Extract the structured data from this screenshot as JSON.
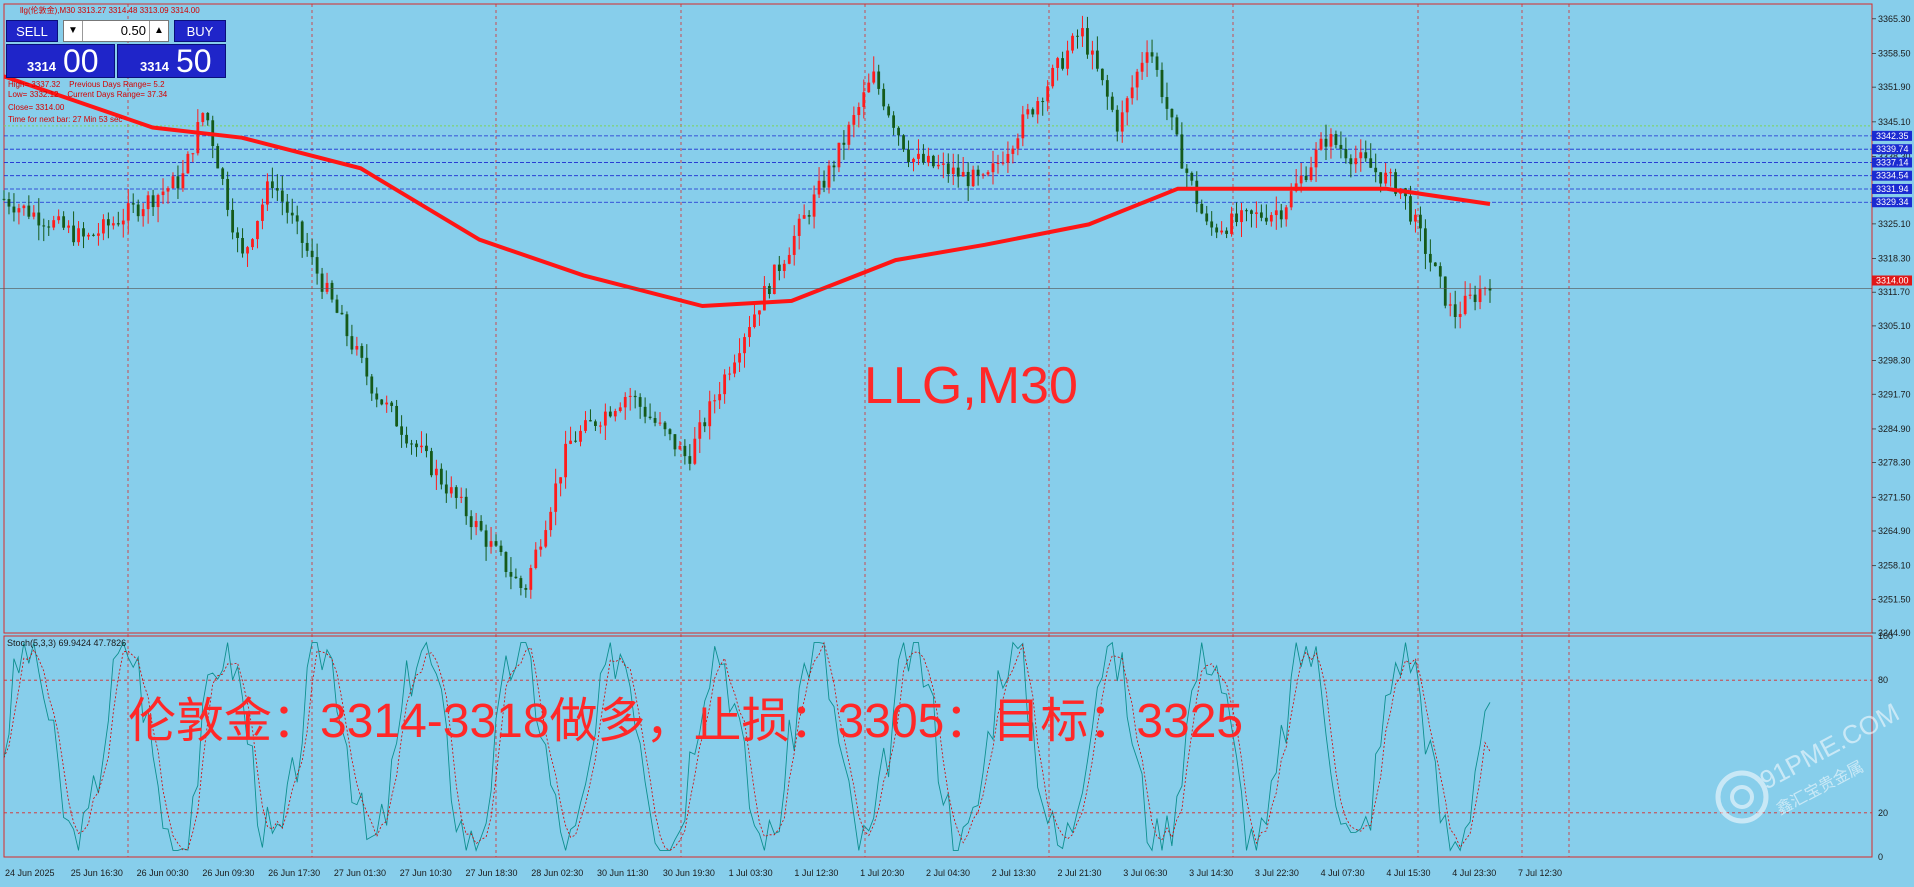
{
  "window": {
    "title_line": "llg(伦敦金),M30  3313.27 3314.48 3313.09 3314.00",
    "symbol_label": "LLG,M30",
    "annotation": "伦敦金：3314-3318做多，止损：3305：目标：3325",
    "watermark": "91PME.COM 鑫汇宝贵金属"
  },
  "trade_panel": {
    "sell_label": "SELL",
    "buy_label": "BUY",
    "lot_value": "0.50",
    "sell_small": "3314",
    "sell_big": "00",
    "buy_small": "3314",
    "buy_big": "50",
    "down_arrow": "▼",
    "up_arrow": "▲"
  },
  "info_lines": [
    "High= 3337.32    Previous Days Range= 5.2",
    "Low= 3332.12    Current Days Range= 37.34",
    "Close= 3314.00",
    "Time for next bar: 27 Min 53 sec"
  ],
  "colors": {
    "background": "#87CEEB",
    "grid": "#d92a2a",
    "bull": "#ff1c1c",
    "bear": "#155a1a",
    "ma": "#ff1515",
    "stoch_main": "#0e8f8f",
    "stoch_signal": "#d40000"
  },
  "chart_data": {
    "type": "candlestick",
    "title": "LLG,M30",
    "price_axis": {
      "min": 3244.9,
      "max": 3368.2,
      "ticks": [
        "3365.30",
        "3358.50",
        "3351.90",
        "3345.10",
        "3338.30",
        "3331.70",
        "3325.10",
        "3318.30",
        "3311.70",
        "3305.10",
        "3298.30",
        "3291.70",
        "3284.90",
        "3278.30",
        "3271.50",
        "3264.90",
        "3258.10",
        "3251.50",
        "3244.90"
      ]
    },
    "price_labels_boxes": [
      "3342.35",
      "3339.74",
      "3337.14",
      "3334.54",
      "3331.94",
      "3329.34",
      "3314.00"
    ],
    "levels": [
      3342.35,
      3339.74,
      3337.14,
      3334.54,
      3331.94,
      3329.34
    ],
    "current_price": 3314.0,
    "time_labels": [
      "24 Jun 2025",
      "25 Jun 16:30",
      "26 Jun 00:30",
      "26 Jun 09:30",
      "26 Jun 17:30",
      "27 Jun 01:30",
      "27 Jun 10:30",
      "27 Jun 18:30",
      "28 Jun 02:30",
      "30 Jun 11:30",
      "30 Jun 19:30",
      "1 Jul 03:30",
      "1 Jul 12:30",
      "1 Jul 20:30",
      "2 Jul 04:30",
      "2 Jul 13:30",
      "2 Jul 21:30",
      "3 Jul 06:30",
      "3 Jul 14:30",
      "3 Jul 22:30",
      "4 Jul 07:30",
      "4 Jul 15:30",
      "4 Jul 23:30",
      "7 Jul 12:30"
    ],
    "key_points": [
      {
        "t": 0,
        "price": 3330
      },
      {
        "t": 0.055,
        "price": 3322
      },
      {
        "t": 0.12,
        "price": 3334
      },
      {
        "t": 0.135,
        "price": 3348
      },
      {
        "t": 0.16,
        "price": 3318
      },
      {
        "t": 0.18,
        "price": 3334
      },
      {
        "t": 0.25,
        "price": 3292
      },
      {
        "t": 0.32,
        "price": 3265
      },
      {
        "t": 0.35,
        "price": 3253
      },
      {
        "t": 0.38,
        "price": 3282
      },
      {
        "t": 0.42,
        "price": 3292
      },
      {
        "t": 0.46,
        "price": 3279
      },
      {
        "t": 0.5,
        "price": 3305
      },
      {
        "t": 0.56,
        "price": 3338
      },
      {
        "t": 0.585,
        "price": 3354
      },
      {
        "t": 0.61,
        "price": 3338
      },
      {
        "t": 0.66,
        "price": 3333
      },
      {
        "t": 0.69,
        "price": 3347
      },
      {
        "t": 0.725,
        "price": 3363
      },
      {
        "t": 0.75,
        "price": 3344
      },
      {
        "t": 0.77,
        "price": 3361
      },
      {
        "t": 0.79,
        "price": 3340
      },
      {
        "t": 0.81,
        "price": 3324
      },
      {
        "t": 0.86,
        "price": 3328
      },
      {
        "t": 0.89,
        "price": 3342
      },
      {
        "t": 0.94,
        "price": 3332
      },
      {
        "t": 0.975,
        "price": 3307
      },
      {
        "t": 1.0,
        "price": 3314
      }
    ],
    "ma_points": [
      {
        "t": 0,
        "price": 3354
      },
      {
        "t": 0.1,
        "price": 3344
      },
      {
        "t": 0.16,
        "price": 3342
      },
      {
        "t": 0.24,
        "price": 3336
      },
      {
        "t": 0.32,
        "price": 3322
      },
      {
        "t": 0.39,
        "price": 3315
      },
      {
        "t": 0.47,
        "price": 3309
      },
      {
        "t": 0.53,
        "price": 3310
      },
      {
        "t": 0.6,
        "price": 3318
      },
      {
        "t": 0.66,
        "price": 3321
      },
      {
        "t": 0.73,
        "price": 3325
      },
      {
        "t": 0.79,
        "price": 3332
      },
      {
        "t": 0.86,
        "price": 3332
      },
      {
        "t": 0.93,
        "price": 3332
      },
      {
        "t": 1.0,
        "price": 3329
      }
    ],
    "stochastic": {
      "label": "Stoch(5,3,3) 69.9424 47.7826",
      "main": 69.9424,
      "signal": 47.7826,
      "axis_ticks": [
        "100",
        "80",
        "20",
        "0"
      ],
      "levels": [
        80,
        20
      ]
    }
  }
}
